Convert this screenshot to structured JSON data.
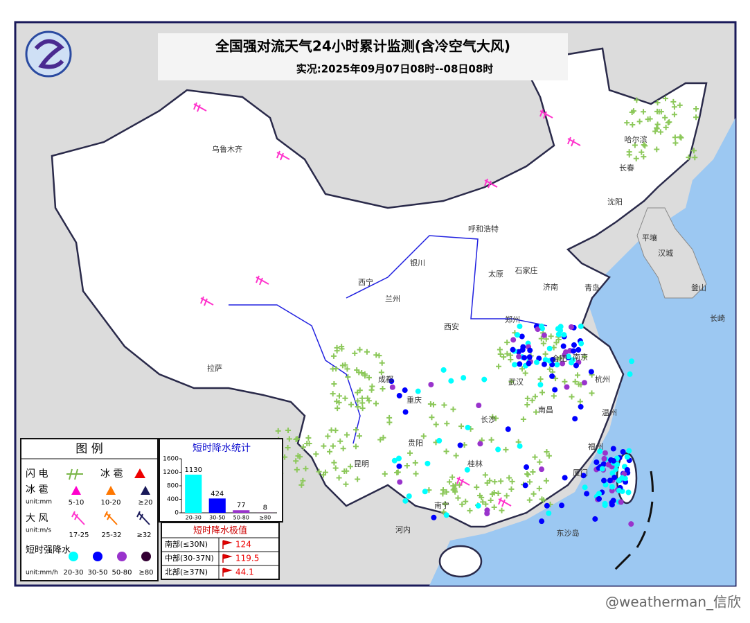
{
  "header": {
    "title": "全国强对流天气24小时累计监测(含冷空气大风)",
    "subtitle": "实况:2025年09月07日08时--08日08时"
  },
  "map": {
    "cities": [
      "乌鲁木齐",
      "哈尔滨",
      "长春",
      "沈阳",
      "呼和浩特",
      "太原",
      "石家庄",
      "济南",
      "青岛",
      "郑州",
      "西安",
      "西宁",
      "兰州",
      "银川",
      "合肥",
      "南京",
      "武汉",
      "成都",
      "重庆",
      "长沙",
      "南昌",
      "杭州",
      "温州",
      "福州",
      "厦门",
      "昆明",
      "贵阳",
      "桂林",
      "南宁",
      "拉萨",
      "平壤",
      "汉城",
      "釜山",
      "长崎",
      "河内",
      "东沙岛"
    ]
  },
  "legend": {
    "title": "图 例",
    "lightning": "闪 电",
    "hail_symbol": "冰 雹",
    "hail": {
      "label": "冰 雹",
      "unit": "unit:mm",
      "classes": [
        "5-10",
        "10-20",
        "≥20"
      ]
    },
    "wind": {
      "label": "大 风",
      "unit": "unit:m/s",
      "classes": [
        "17-25",
        "25-32",
        "≥32"
      ]
    },
    "rain": {
      "label": "短时强降水",
      "unit": "unit:mm/h",
      "classes": [
        "20-30",
        "30-50",
        "50-80",
        "≥80"
      ]
    }
  },
  "chart_data": {
    "type": "bar",
    "title": "短时降水统计",
    "categories": [
      "20-30",
      "30-50",
      "50-80",
      "≥80"
    ],
    "values": [
      1130,
      424,
      77,
      8
    ],
    "colors": [
      "#00ffff",
      "#0000ff",
      "#9933cc",
      "#330033"
    ],
    "ylim": [
      0,
      1600
    ],
    "yticks": [
      0,
      400,
      800,
      1200,
      1600
    ]
  },
  "extremes": {
    "title": "短时降水极值",
    "rows": [
      [
        "南部(≤30N)",
        124
      ],
      [
        "中部(30-37N)",
        119.5
      ],
      [
        "北部(≥37N)",
        44.1
      ]
    ]
  },
  "watermark": "@weatherman_信欣"
}
